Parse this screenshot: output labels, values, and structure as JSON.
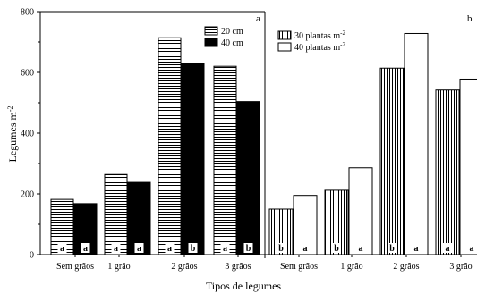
{
  "chart_data": [
    {
      "type": "bar",
      "panel_label": "a",
      "categories": [
        "Sem grãos",
        "1 grão",
        "2 grãos",
        "3 grãos"
      ],
      "series": [
        {
          "name": "20 cm",
          "values": [
            182,
            264,
            714,
            620
          ],
          "letters": [
            "a",
            "a",
            "a",
            "a"
          ],
          "fill": "hstripe"
        },
        {
          "name": "40 cm",
          "values": [
            168,
            238,
            628,
            504
          ],
          "letters": [
            "a",
            "a",
            "b",
            "b"
          ],
          "fill": "solid"
        }
      ],
      "ylabel": "Legumes m",
      "ylabel_sup": "-2",
      "ylim": [
        0,
        800
      ],
      "yticks": [
        0,
        200,
        400,
        600,
        800
      ],
      "legend": "top-right"
    },
    {
      "type": "bar",
      "panel_label": "b",
      "categories": [
        "Sem grãos",
        "1 grão",
        "2 grãos",
        "3 grão"
      ],
      "series": [
        {
          "name": "30 plantas m",
          "name_sup": "-2",
          "values": [
            150,
            212,
            614,
            542
          ],
          "letters": [
            "b",
            "b",
            "b",
            "a"
          ],
          "fill": "vstripe"
        },
        {
          "name": "40 plantas m",
          "name_sup": "-2",
          "values": [
            195,
            286,
            728,
            578
          ],
          "letters": [
            "a",
            "a",
            "a",
            "a"
          ],
          "fill": "white"
        }
      ],
      "ylim": [
        0,
        800
      ],
      "legend": "top-left"
    }
  ],
  "xlabel": "Tipos de legumes",
  "colors": {
    "ink": "#000000",
    "background": "#ffffff"
  }
}
